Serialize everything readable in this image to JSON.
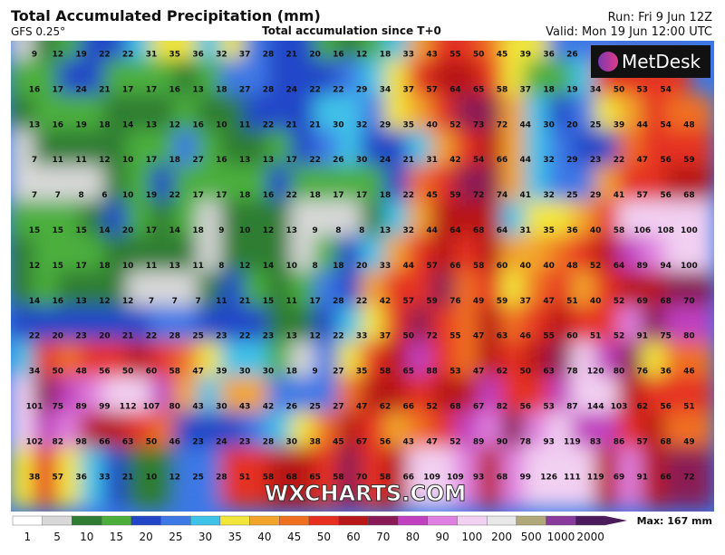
{
  "header": {
    "title": "Total Accumulated Precipitation (mm)",
    "model": "GFS 0.25°",
    "subtitle": "Total accumulation since T+0",
    "run": "Run: Fri 9 Jun 12Z",
    "valid": "Valid: Mon 19 Jun 12:00 UTC"
  },
  "logo": "MetDesk",
  "watermark": "WXCHARTS.COM",
  "max_label": "Max: 167 mm",
  "legend": {
    "ticks": [
      1,
      5,
      10,
      15,
      20,
      25,
      30,
      35,
      40,
      45,
      50,
      60,
      70,
      80,
      90,
      100,
      200,
      500,
      1000,
      2000
    ],
    "colors": [
      "#ffffff",
      "#d8d8d8",
      "#2f7d32",
      "#4caf3c",
      "#2346c8",
      "#3c78e6",
      "#3fc2e8",
      "#f2e63a",
      "#f2a52a",
      "#f07020",
      "#e53020",
      "#b81818",
      "#8a1a55",
      "#c040c0",
      "#e080e0",
      "#f2d0f2",
      "#e8e8e8",
      "#b0a878",
      "#8a3a9a",
      "#4a1a5a"
    ]
  },
  "grid": [
    [
      9,
      12,
      19,
      22,
      22,
      31,
      35,
      36,
      32,
      37,
      28,
      21,
      20,
      16,
      12,
      18,
      33,
      43,
      55,
      50,
      45,
      39,
      36,
      26,
      null,
      null,
      null,
      null,
      null
    ],
    [
      16,
      17,
      24,
      21,
      17,
      17,
      16,
      13,
      18,
      27,
      28,
      24,
      22,
      22,
      29,
      34,
      37,
      57,
      64,
      65,
      58,
      37,
      18,
      19,
      34,
      50,
      53,
      54,
      null
    ],
    [
      13,
      16,
      19,
      18,
      14,
      13,
      12,
      16,
      10,
      11,
      22,
      21,
      21,
      30,
      32,
      29,
      35,
      40,
      52,
      73,
      72,
      44,
      30,
      20,
      25,
      39,
      44,
      54,
      48
    ],
    [
      7,
      11,
      11,
      12,
      10,
      17,
      18,
      27,
      16,
      13,
      13,
      17,
      22,
      26,
      30,
      24,
      21,
      31,
      42,
      54,
      66,
      44,
      32,
      29,
      23,
      22,
      47,
      56,
      59
    ],
    [
      7,
      7,
      8,
      6,
      10,
      19,
      22,
      17,
      17,
      18,
      16,
      22,
      18,
      17,
      17,
      18,
      22,
      45,
      59,
      72,
      74,
      41,
      32,
      25,
      29,
      41,
      57,
      56,
      68
    ],
    [
      15,
      15,
      15,
      14,
      20,
      17,
      14,
      18,
      9,
      10,
      12,
      13,
      9,
      8,
      8,
      13,
      32,
      44,
      64,
      68,
      64,
      31,
      35,
      36,
      40,
      58,
      106,
      108,
      100
    ],
    [
      12,
      15,
      17,
      18,
      10,
      11,
      13,
      11,
      8,
      12,
      14,
      10,
      8,
      18,
      20,
      33,
      44,
      57,
      66,
      58,
      60,
      40,
      40,
      48,
      52,
      64,
      89,
      94,
      100
    ],
    [
      14,
      16,
      13,
      12,
      12,
      7,
      7,
      7,
      11,
      21,
      15,
      11,
      17,
      28,
      22,
      42,
      57,
      59,
      76,
      49,
      59,
      37,
      47,
      51,
      40,
      52,
      69,
      68,
      70
    ],
    [
      22,
      20,
      23,
      20,
      21,
      22,
      28,
      25,
      23,
      22,
      23,
      13,
      12,
      22,
      33,
      37,
      50,
      72,
      55,
      47,
      63,
      46,
      55,
      60,
      51,
      52,
      91,
      75,
      80
    ],
    [
      34,
      50,
      48,
      56,
      50,
      60,
      58,
      47,
      39,
      30,
      30,
      18,
      9,
      27,
      35,
      58,
      65,
      88,
      53,
      47,
      62,
      50,
      63,
      78,
      120,
      80,
      76,
      36,
      46
    ],
    [
      101,
      75,
      89,
      99,
      112,
      107,
      80,
      43,
      30,
      43,
      42,
      26,
      25,
      27,
      47,
      62,
      66,
      52,
      68,
      67,
      82,
      56,
      53,
      87,
      144,
      103,
      62,
      56,
      51
    ],
    [
      102,
      82,
      98,
      66,
      63,
      50,
      46,
      23,
      24,
      23,
      28,
      30,
      38,
      45,
      67,
      56,
      43,
      47,
      52,
      89,
      90,
      78,
      93,
      119,
      83,
      86,
      57,
      68,
      49
    ],
    [
      38,
      57,
      36,
      33,
      21,
      10,
      12,
      25,
      28,
      51,
      58,
      68,
      65,
      58,
      70,
      58,
      66,
      109,
      109,
      93,
      68,
      99,
      126,
      111,
      119,
      69,
      91,
      66,
      72
    ]
  ]
}
